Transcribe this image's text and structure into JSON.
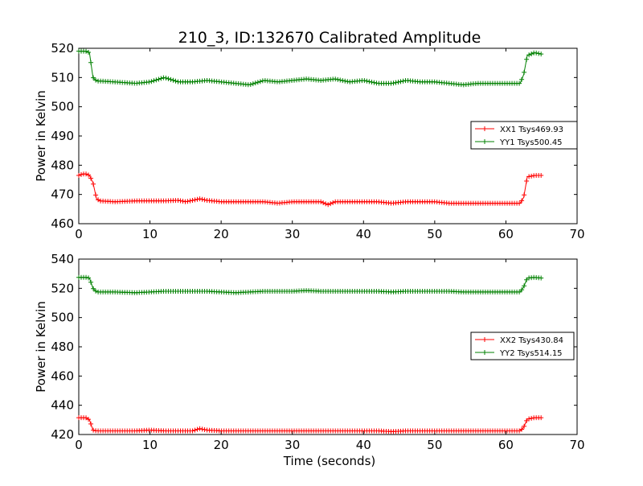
{
  "chart_data": {
    "type": "line",
    "title": "210_3, ID:132670 Calibrated Amplitude",
    "xlabel": "Time (seconds)",
    "colors": {
      "red": "#ff0000",
      "green": "#008000"
    },
    "grid": false,
    "legend_placement": "center-right",
    "marker": "plus",
    "subplots": [
      {
        "ylabel": "Power in Kelvin",
        "xlim": [
          0,
          70
        ],
        "ylim": [
          460,
          520
        ],
        "xticks": [
          "0",
          "10",
          "20",
          "30",
          "40",
          "50",
          "60",
          "70"
        ],
        "yticks": [
          "460",
          "470",
          "480",
          "490",
          "500",
          "510",
          "520"
        ],
        "legend": [
          "XX1 Tsys469.93",
          "YY1 Tsys500.45"
        ],
        "series": [
          {
            "name": "XX1 Tsys469.93",
            "color": "#ff0000",
            "x": [
              0,
              0.5,
              1,
              1.5,
              2,
              2.5,
              3,
              5,
              8,
              10,
              12,
              14,
              15,
              17,
              18,
              20,
              22,
              24,
              26,
              28,
              30,
              32,
              34,
              35,
              36,
              38,
              40,
              42,
              44,
              46,
              48,
              50,
              52,
              54,
              56,
              58,
              60,
              62,
              62.5,
              63,
              64,
              65
            ],
            "y": [
              476.5,
              477,
              477,
              476.5,
              474,
              468.5,
              467.8,
              467.5,
              467.8,
              467.8,
              467.8,
              468,
              467.5,
              468.5,
              468,
              467.5,
              467.5,
              467.5,
              467.5,
              467,
              467.5,
              467.5,
              467.5,
              466.5,
              467.5,
              467.5,
              467.5,
              467.5,
              467,
              467.5,
              467.5,
              467.5,
              467,
              467,
              467,
              467,
              467,
              467,
              469,
              476,
              476.5,
              476.5
            ]
          },
          {
            "name": "YY1 Tsys500.45",
            "color": "#008000",
            "x": [
              0,
              0.5,
              1,
              1.5,
              2,
              2.5,
              3,
              5,
              8,
              10,
              12,
              14,
              16,
              18,
              20,
              22,
              24,
              26,
              28,
              30,
              32,
              34,
              36,
              38,
              40,
              42,
              44,
              46,
              48,
              50,
              52,
              54,
              56,
              58,
              60,
              62,
              62.5,
              63,
              64,
              65
            ],
            "y": [
              519,
              519,
              519,
              518.5,
              510,
              508.8,
              508.8,
              508.5,
              508,
              508.5,
              510,
              508.5,
              508.5,
              509,
              508.5,
              508,
              507.5,
              509,
              508.5,
              509,
              509.5,
              509,
              509.5,
              508.5,
              509,
              508,
              508,
              509,
              508.5,
              508.5,
              508,
              507.5,
              508,
              508,
              508,
              508,
              511,
              517.5,
              518.5,
              518
            ]
          }
        ]
      },
      {
        "ylabel": "Power in Kelvin",
        "xlim": [
          0,
          70
        ],
        "ylim": [
          420,
          540
        ],
        "xticks": [
          "0",
          "10",
          "20",
          "30",
          "40",
          "50",
          "60",
          "70"
        ],
        "yticks": [
          "420",
          "440",
          "460",
          "480",
          "500",
          "520",
          "540"
        ],
        "legend": [
          "XX2 Tsys430.84",
          "YY2 Tsys514.15"
        ],
        "series": [
          {
            "name": "XX2 Tsys430.84",
            "color": "#ff0000",
            "x": [
              0,
              0.5,
              1,
              1.5,
              2,
              2.5,
              3,
              5,
              8,
              10,
              12,
              14,
              16,
              17,
              18,
              20,
              22,
              24,
              26,
              28,
              30,
              32,
              34,
              36,
              38,
              40,
              42,
              44,
              46,
              48,
              50,
              52,
              54,
              56,
              58,
              60,
              62,
              62.5,
              63,
              64,
              65
            ],
            "y": [
              431.5,
              431.5,
              431.5,
              430,
              423,
              422.5,
              422.5,
              422.5,
              422.5,
              423,
              422.5,
              422.5,
              422.5,
              424,
              423,
              422.5,
              422.5,
              422.5,
              422.5,
              422.5,
              422.5,
              422.5,
              422.5,
              422.5,
              422.5,
              422.5,
              422.5,
              422,
              422.5,
              422.5,
              422.5,
              422.5,
              422.5,
              422.5,
              422.5,
              422.5,
              422.5,
              425,
              430.5,
              431.5,
              431.5
            ]
          },
          {
            "name": "YY2 Tsys514.15",
            "color": "#008000",
            "x": [
              0,
              0.5,
              1,
              1.5,
              2,
              2.5,
              3,
              5,
              8,
              10,
              12,
              14,
              16,
              18,
              20,
              22,
              24,
              26,
              28,
              30,
              32,
              34,
              36,
              38,
              40,
              42,
              44,
              46,
              48,
              50,
              52,
              54,
              56,
              58,
              60,
              62,
              62.5,
              63,
              64,
              65
            ],
            "y": [
              527.5,
              527.5,
              527.5,
              527,
              520,
              517.5,
              517.5,
              517.5,
              517,
              517.5,
              518,
              518,
              518,
              518,
              517.5,
              517,
              517.5,
              518,
              518,
              518,
              518.5,
              518,
              518,
              518,
              518,
              518,
              517.5,
              518,
              518,
              518,
              518,
              517.5,
              517.5,
              517.5,
              517.5,
              517.5,
              521,
              527,
              527.5,
              527
            ]
          }
        ]
      }
    ]
  }
}
